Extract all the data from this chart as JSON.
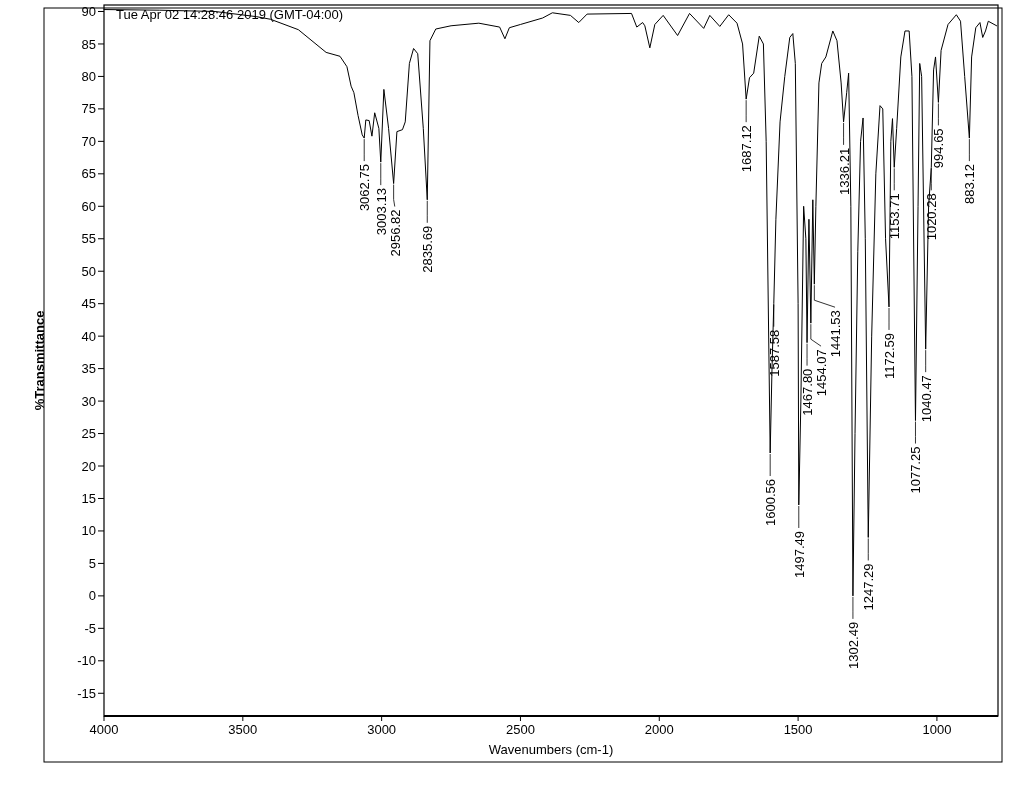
{
  "chart_data": {
    "type": "line",
    "xlabel": "Wavenumbers (cm-1)",
    "ylabel": "%Transmittance",
    "xlim": [
      4000,
      780
    ],
    "ylim": [
      -18.5,
      91
    ],
    "xticks": [
      4000,
      3500,
      3000,
      2500,
      2000,
      1500,
      1000
    ],
    "yticks": [
      -15,
      -10,
      -5,
      0,
      5,
      10,
      15,
      20,
      25,
      30,
      35,
      40,
      45,
      50,
      55,
      60,
      65,
      70,
      75,
      80,
      85,
      90
    ],
    "grid": false,
    "marker": "none",
    "line_style": "solid",
    "series": [
      {
        "color": "#000000",
        "x": [
          4000,
          3800,
          3600,
          3450,
          3400,
          3300,
          3200,
          3150,
          3125,
          3110,
          3100,
          3085,
          3070,
          3062.75,
          3057,
          3045,
          3035,
          3025,
          3010,
          3003.13,
          2992,
          2975,
          2956.82,
          2945,
          2925,
          2915,
          2900,
          2885,
          2870,
          2850,
          2835.69,
          2826,
          2805,
          2750,
          2650,
          2575,
          2556,
          2540,
          2500,
          2420,
          2385,
          2320,
          2290,
          2260,
          2100,
          2081,
          2060,
          2052,
          2034,
          2016,
          1986,
          1934,
          1891,
          1840,
          1818,
          1782,
          1750,
          1720,
          1700,
          1687.12,
          1675,
          1660,
          1640,
          1625,
          1615,
          1600.56,
          1594,
          1587.58,
          1580,
          1565,
          1548,
          1530,
          1519,
          1510,
          1500,
          1497.49,
          1490,
          1480,
          1472,
          1467.8,
          1461,
          1454.07,
          1447,
          1441.53,
          1436,
          1425,
          1415,
          1400,
          1375,
          1360,
          1345,
          1336.21,
          1325,
          1318,
          1310,
          1302.49,
          1295,
          1285,
          1275,
          1266,
          1258,
          1247.29,
          1235,
          1220,
          1205,
          1195,
          1185,
          1172.59,
          1166,
          1160,
          1153.71,
          1145,
          1130,
          1115,
          1100,
          1090,
          1077.25,
          1068,
          1062,
          1055,
          1040.47,
          1030,
          1020.28,
          1012,
          1005,
          994.65,
          985,
          960,
          930,
          915,
          900,
          883.12,
          875,
          860,
          845,
          835,
          825,
          815,
          785
        ],
        "values": [
          90.3,
          90.2,
          90,
          89.2,
          88.8,
          87.2,
          83.7,
          83.1,
          81.5,
          78.5,
          77.5,
          74,
          71,
          70.5,
          73.3,
          73.2,
          70.8,
          74.4,
          72,
          66.8,
          78,
          72,
          63.5,
          71.5,
          71.8,
          73,
          82,
          84.3,
          83.5,
          72,
          61,
          85.5,
          87.3,
          87.8,
          88.2,
          87.6,
          85.8,
          87.5,
          88,
          89,
          89.8,
          89.4,
          88.3,
          89.6,
          89.7,
          87.6,
          88.3,
          87.8,
          84.4,
          88,
          89.4,
          86.3,
          89.7,
          87.4,
          89.4,
          87.7,
          89.5,
          88.2,
          85,
          76.5,
          79.8,
          80.5,
          86.2,
          85,
          70,
          22,
          35,
          45,
          58,
          73,
          80,
          86,
          86.6,
          82,
          45,
          14,
          30,
          60,
          55,
          39,
          58,
          42,
          61,
          48,
          60,
          79,
          82,
          83,
          87,
          85.5,
          79,
          73,
          77.5,
          80.5,
          60,
          0,
          25,
          53,
          70,
          73.6,
          55,
          9,
          40,
          65,
          75.5,
          75,
          55,
          44.5,
          70,
          73.5,
          66,
          72,
          83,
          87,
          87,
          80,
          27,
          60,
          82,
          80,
          38,
          60,
          66,
          81,
          83,
          76,
          84,
          88,
          89.5,
          88.5,
          80,
          70.5,
          83,
          87.5,
          88.3,
          86,
          87,
          88.5,
          87.8
        ]
      }
    ],
    "annotations": [
      "Tue Apr 02 14:28:46 2019 (GMT-04:00)",
      {
        "text": "3062.75",
        "x": 3062.75,
        "y": 70.5
      },
      {
        "text": "3003.13",
        "x": 3003.13,
        "y": 66.8
      },
      {
        "text": "2956.82",
        "x": 2956.82,
        "y": 63.5
      },
      {
        "text": "2835.69",
        "x": 2835.69,
        "y": 61
      },
      {
        "text": "1687.12",
        "x": 1687.12,
        "y": 76.5
      },
      {
        "text": "1600.56",
        "x": 1600.56,
        "y": 22
      },
      {
        "text": "1587.58",
        "x": 1587.58,
        "y": 45
      },
      {
        "text": "1497.49",
        "x": 1497.49,
        "y": 14
      },
      {
        "text": "1467.80",
        "x": 1467.8,
        "y": 39
      },
      {
        "text": "1454.07",
        "x": 1454.07,
        "y": 42
      },
      {
        "text": "1441.53",
        "x": 1441.53,
        "y": 48
      },
      {
        "text": "1336.21",
        "x": 1336.21,
        "y": 73
      },
      {
        "text": "1302.49",
        "x": 1302.49,
        "y": 0
      },
      {
        "text": "1247.29",
        "x": 1247.29,
        "y": 9
      },
      {
        "text": "1172.59",
        "x": 1172.59,
        "y": 44.5
      },
      {
        "text": "1153.71",
        "x": 1153.71,
        "y": 66
      },
      {
        "text": "1077.25",
        "x": 1077.25,
        "y": 27
      },
      {
        "text": "1040.47",
        "x": 1040.47,
        "y": 38
      },
      {
        "text": "1020.28",
        "x": 1020.28,
        "y": 66
      },
      {
        "text": "994.65",
        "x": 994.65,
        "y": 76
      },
      {
        "text": "883.12",
        "x": 883.12,
        "y": 70.5
      }
    ]
  }
}
